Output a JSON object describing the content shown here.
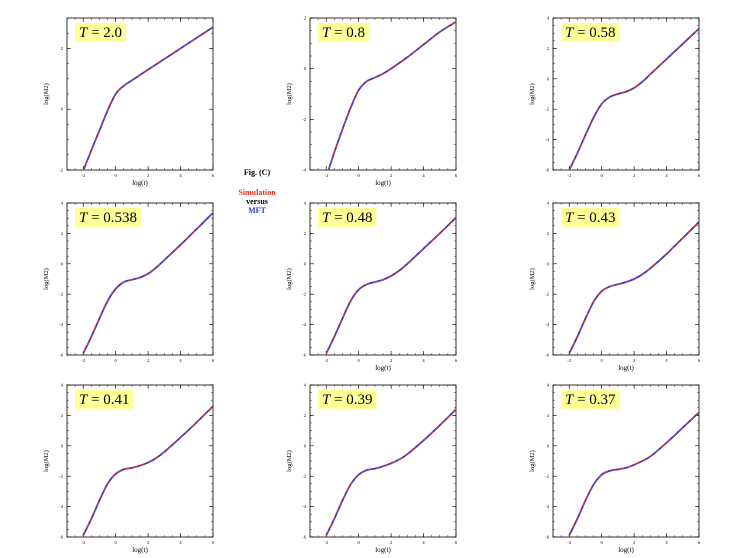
{
  "legend": {
    "title": "Fig. (C)",
    "simulation_label": "Simulation",
    "versus_label": "versus",
    "mft_label": "MFT",
    "simulation_color": "#e8321e",
    "mft_color": "#2b3bd9"
  },
  "colors": {
    "label_box": "#ffff99",
    "axis": "#000000"
  },
  "chart_data": [
    {
      "type": "line",
      "title": "T = 2.0",
      "temperature": "2.0",
      "xlabel": "log(t)",
      "ylabel": "log(M2)",
      "xlim": [
        -3,
        6
      ],
      "ylim": [
        -2,
        3
      ],
      "xticks": [
        -2,
        0,
        2,
        4,
        6
      ],
      "yticks": [
        -2,
        0,
        2
      ],
      "x": [
        -2.2,
        -1.5,
        -1,
        -0.5,
        0,
        0.5,
        1,
        2,
        3,
        4,
        5,
        6
      ],
      "series": [
        {
          "name": "Simulation",
          "values": [
            -2.3,
            -1.35,
            -0.7,
            -0.05,
            0.5,
            0.77,
            0.95,
            1.3,
            1.65,
            2.0,
            2.35,
            2.7
          ]
        },
        {
          "name": "MFT",
          "values": [
            -2.3,
            -1.35,
            -0.7,
            -0.05,
            0.5,
            0.77,
            0.95,
            1.3,
            1.65,
            2.0,
            2.35,
            2.7
          ]
        }
      ]
    },
    {
      "type": "line",
      "title": "T = 0.8",
      "temperature": "0.8",
      "xlabel": "log(t)",
      "ylabel": "log(M2)",
      "xlim": [
        -3,
        6
      ],
      "ylim": [
        -4,
        2
      ],
      "xticks": [
        -2,
        0,
        2,
        4,
        6
      ],
      "yticks": [
        -4,
        -2,
        0,
        2
      ],
      "x": [
        -2,
        -1.5,
        -1,
        -0.5,
        0,
        0.5,
        1,
        1.5,
        2,
        3,
        4,
        5,
        6
      ],
      "series": [
        {
          "name": "Simulation",
          "values": [
            -4.3,
            -3.3,
            -2.4,
            -1.55,
            -0.85,
            -0.5,
            -0.35,
            -0.2,
            0.0,
            0.45,
            0.95,
            1.45,
            1.85
          ]
        },
        {
          "name": "MFT",
          "values": [
            -4.3,
            -3.3,
            -2.4,
            -1.55,
            -0.85,
            -0.5,
            -0.35,
            -0.2,
            0.0,
            0.45,
            0.95,
            1.45,
            1.85
          ]
        }
      ]
    },
    {
      "type": "line",
      "title": "T = 0.58",
      "temperature": "0.58",
      "xlabel": "",
      "ylabel": "log(M2)",
      "xlim": [
        -3,
        6
      ],
      "ylim": [
        -6,
        4
      ],
      "xticks": [
        -2,
        0,
        2,
        4,
        6
      ],
      "yticks": [
        -6,
        -4,
        -2,
        0,
        2,
        4
      ],
      "x": [
        -2,
        -1.5,
        -1,
        -0.5,
        0,
        0.5,
        1,
        1.5,
        2,
        2.5,
        3,
        4,
        5,
        6
      ],
      "series": [
        {
          "name": "Simulation",
          "values": [
            -6.0,
            -4.9,
            -3.7,
            -2.55,
            -1.65,
            -1.2,
            -1.0,
            -0.85,
            -0.6,
            -0.2,
            0.3,
            1.3,
            2.3,
            3.3
          ]
        },
        {
          "name": "MFT",
          "values": [
            -6.0,
            -4.9,
            -3.7,
            -2.55,
            -1.65,
            -1.2,
            -1.0,
            -0.85,
            -0.6,
            -0.2,
            0.3,
            1.3,
            2.3,
            3.3
          ]
        }
      ]
    },
    {
      "type": "line",
      "title": "T = 0.538",
      "temperature": "0.538",
      "xlabel": "",
      "ylabel": "log(M2)",
      "xlim": [
        -3,
        6
      ],
      "ylim": [
        -6,
        4
      ],
      "xticks": [
        -2,
        0,
        2,
        4,
        6
      ],
      "yticks": [
        -6,
        -4,
        -2,
        0,
        2,
        4
      ],
      "x": [
        -2,
        -1.5,
        -1,
        -0.5,
        0,
        0.5,
        1,
        1.5,
        2,
        2.5,
        3,
        4,
        5,
        6
      ],
      "series": [
        {
          "name": "Simulation",
          "values": [
            -5.9,
            -4.8,
            -3.6,
            -2.45,
            -1.65,
            -1.2,
            -1.05,
            -0.9,
            -0.65,
            -0.25,
            0.25,
            1.25,
            2.3,
            3.35
          ]
        },
        {
          "name": "MFT",
          "values": [
            -5.9,
            -4.8,
            -3.6,
            -2.45,
            -1.65,
            -1.2,
            -1.05,
            -0.9,
            -0.65,
            -0.25,
            0.25,
            1.25,
            2.3,
            3.35
          ]
        }
      ]
    },
    {
      "type": "line",
      "title": "T = 0.48",
      "temperature": "0.48",
      "xlabel": "log(t)",
      "ylabel": "log(M2)",
      "xlim": [
        -3,
        6
      ],
      "ylim": [
        -6,
        4
      ],
      "xticks": [
        -2,
        0,
        2,
        4,
        6
      ],
      "yticks": [
        -6,
        -4,
        -2,
        0,
        2,
        4
      ],
      "x": [
        -2,
        -1.5,
        -1,
        -0.5,
        0,
        0.5,
        1,
        1.5,
        2,
        2.5,
        3,
        4,
        5,
        6
      ],
      "series": [
        {
          "name": "Simulation",
          "values": [
            -5.9,
            -4.8,
            -3.6,
            -2.45,
            -1.7,
            -1.35,
            -1.2,
            -1.05,
            -0.8,
            -0.45,
            0.0,
            1.0,
            2.0,
            3.05
          ]
        },
        {
          "name": "MFT",
          "values": [
            -5.9,
            -4.8,
            -3.6,
            -2.45,
            -1.7,
            -1.35,
            -1.2,
            -1.05,
            -0.8,
            -0.45,
            0.0,
            1.0,
            2.0,
            3.05
          ]
        }
      ]
    },
    {
      "type": "line",
      "title": "T = 0.43",
      "temperature": "0.43",
      "xlabel": "log(t)",
      "ylabel": "log(M2)",
      "xlim": [
        -3,
        6
      ],
      "ylim": [
        -6,
        4
      ],
      "xticks": [
        -2,
        0,
        2,
        4,
        6
      ],
      "yticks": [
        -6,
        -4,
        -2,
        0,
        2,
        4
      ],
      "x": [
        -2,
        -1.5,
        -1,
        -0.5,
        0,
        0.5,
        1,
        1.5,
        2,
        2.5,
        3,
        4,
        5,
        6
      ],
      "series": [
        {
          "name": "Simulation",
          "values": [
            -5.9,
            -4.8,
            -3.6,
            -2.5,
            -1.8,
            -1.5,
            -1.35,
            -1.2,
            -1.0,
            -0.7,
            -0.3,
            0.65,
            1.7,
            2.75
          ]
        },
        {
          "name": "MFT",
          "values": [
            -5.9,
            -4.8,
            -3.6,
            -2.5,
            -1.8,
            -1.5,
            -1.35,
            -1.2,
            -1.0,
            -0.7,
            -0.3,
            0.65,
            1.7,
            2.75
          ]
        }
      ]
    },
    {
      "type": "line",
      "title": "T = 0.41",
      "temperature": "0.41",
      "xlabel": "log(t)",
      "ylabel": "log(M2)",
      "xlim": [
        -3,
        6
      ],
      "ylim": [
        -6,
        4
      ],
      "xticks": [
        -2,
        0,
        2,
        4,
        6
      ],
      "yticks": [
        -6,
        -4,
        -2,
        0,
        2,
        4
      ],
      "x": [
        -2,
        -1.5,
        -1,
        -0.5,
        0,
        0.5,
        1,
        1.5,
        2,
        2.5,
        3,
        4,
        5,
        6
      ],
      "series": [
        {
          "name": "Simulation",
          "values": [
            -5.9,
            -4.8,
            -3.6,
            -2.5,
            -1.85,
            -1.55,
            -1.45,
            -1.3,
            -1.1,
            -0.8,
            -0.4,
            0.55,
            1.55,
            2.6
          ]
        },
        {
          "name": "MFT",
          "values": [
            -5.9,
            -4.8,
            -3.6,
            -2.5,
            -1.85,
            -1.55,
            -1.45,
            -1.3,
            -1.1,
            -0.8,
            -0.4,
            0.55,
            1.55,
            2.6
          ]
        }
      ]
    },
    {
      "type": "line",
      "title": "T = 0.39",
      "temperature": "0.39",
      "xlabel": "log(t)",
      "ylabel": "log(M2)",
      "xlim": [
        -3,
        6
      ],
      "ylim": [
        -6,
        4
      ],
      "xticks": [
        -2,
        0,
        2,
        4,
        6
      ],
      "yticks": [
        -6,
        -4,
        -2,
        0,
        2,
        4
      ],
      "x": [
        -2,
        -1.5,
        -1,
        -0.5,
        0,
        0.5,
        1,
        1.5,
        2,
        2.5,
        3,
        4,
        5,
        6
      ],
      "series": [
        {
          "name": "Simulation",
          "values": [
            -5.9,
            -4.8,
            -3.6,
            -2.55,
            -1.9,
            -1.6,
            -1.5,
            -1.35,
            -1.15,
            -0.9,
            -0.55,
            0.35,
            1.35,
            2.4
          ]
        },
        {
          "name": "MFT",
          "values": [
            -5.9,
            -4.8,
            -3.6,
            -2.55,
            -1.9,
            -1.6,
            -1.5,
            -1.35,
            -1.15,
            -0.9,
            -0.55,
            0.35,
            1.35,
            2.4
          ]
        }
      ]
    },
    {
      "type": "line",
      "title": "T = 0.37",
      "temperature": "0.37",
      "xlabel": "log(t)",
      "ylabel": "log(M2)",
      "xlim": [
        -3,
        6
      ],
      "ylim": [
        -6,
        4
      ],
      "xticks": [
        -2,
        0,
        2,
        4,
        6
      ],
      "yticks": [
        -6,
        -4,
        -2,
        0,
        2,
        4
      ],
      "x": [
        -2,
        -1.5,
        -1,
        -0.5,
        0,
        0.5,
        1,
        1.5,
        2,
        2.5,
        3,
        4,
        5,
        6
      ],
      "series": [
        {
          "name": "Simulation",
          "values": [
            -5.9,
            -4.8,
            -3.6,
            -2.55,
            -1.9,
            -1.65,
            -1.55,
            -1.45,
            -1.25,
            -1.0,
            -0.7,
            0.2,
            1.2,
            2.2
          ]
        },
        {
          "name": "MFT",
          "values": [
            -5.9,
            -4.8,
            -3.6,
            -2.55,
            -1.9,
            -1.65,
            -1.55,
            -1.45,
            -1.25,
            -1.0,
            -0.7,
            0.2,
            1.2,
            2.2
          ]
        }
      ]
    }
  ]
}
